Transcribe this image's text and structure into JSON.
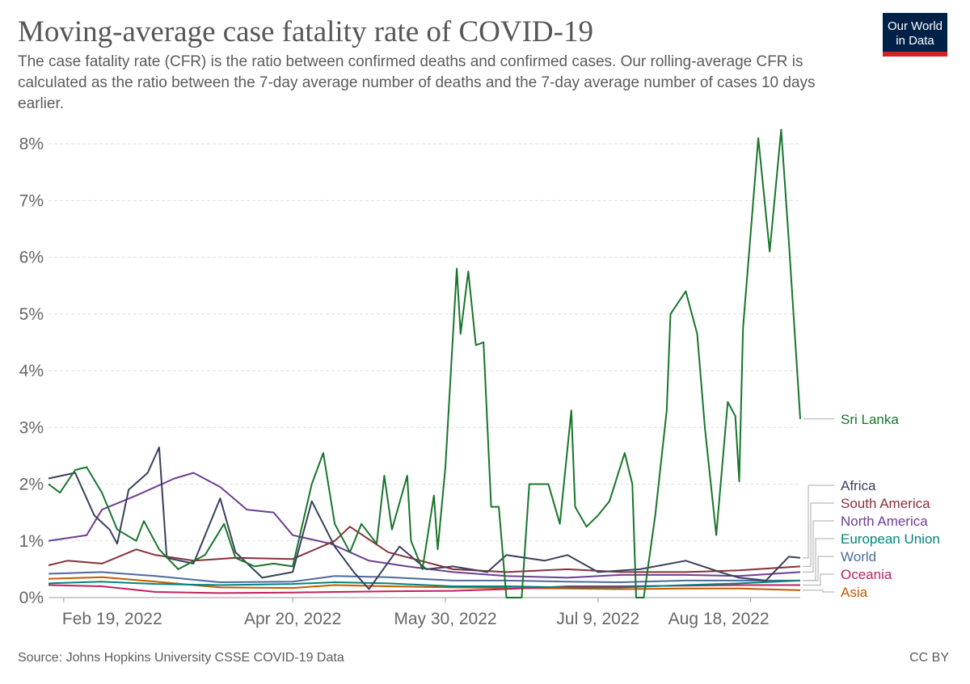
{
  "header": {
    "title": "Moving-average case fatality rate of COVID-19",
    "subtitle": "The case fatality rate (CFR) is the ratio between confirmed deaths and confirmed cases. Our rolling-average CFR is calculated as the ratio between the 7-day average number of deaths and the 7-day average number of cases 10 days earlier.",
    "logo_line1": "Our World",
    "logo_line2": "in Data"
  },
  "footer": {
    "source": "Source: Johns Hopkins University CSSE COVID-19 Data",
    "license": "CC BY"
  },
  "colors": {
    "logo_bg": "#002147",
    "logo_accent": "#ce261e",
    "grid": "#dddddd",
    "axis": "#999999"
  },
  "chart_data": {
    "type": "line",
    "title": "Moving-average case fatality rate of COVID-19",
    "xlabel": "",
    "ylabel": "",
    "x_range": [
      "2022-02-15",
      "2022-08-31"
    ],
    "x_ticks": [
      {
        "date": "2022-02-19",
        "label": "Feb 19, 2022"
      },
      {
        "date": "2022-04-20",
        "label": "Apr 20, 2022"
      },
      {
        "date": "2022-05-30",
        "label": "May 30, 2022"
      },
      {
        "date": "2022-07-09",
        "label": "Jul 9, 2022"
      },
      {
        "date": "2022-08-18",
        "label": "Aug 18, 2022"
      }
    ],
    "ylim": [
      0,
      8.4
    ],
    "y_ticks": [
      0,
      1,
      2,
      3,
      4,
      5,
      6,
      7,
      8
    ],
    "y_tick_labels": [
      "0%",
      "1%",
      "2%",
      "3%",
      "4%",
      "5%",
      "6%",
      "7%",
      "8%"
    ],
    "grid": "horizontal dashed",
    "legend": "direct labels at right end of lines",
    "series": [
      {
        "name": "Asia",
        "color": "#c15b00",
        "points": [
          [
            "2022-02-15",
            0.33
          ],
          [
            "2022-03-01",
            0.36
          ],
          [
            "2022-03-15",
            0.28
          ],
          [
            "2022-04-01",
            0.18
          ],
          [
            "2022-04-20",
            0.17
          ],
          [
            "2022-05-01",
            0.22
          ],
          [
            "2022-05-15",
            0.2
          ],
          [
            "2022-06-01",
            0.18
          ],
          [
            "2022-06-15",
            0.17
          ],
          [
            "2022-07-01",
            0.16
          ],
          [
            "2022-07-15",
            0.15
          ],
          [
            "2022-08-01",
            0.16
          ],
          [
            "2022-08-15",
            0.16
          ],
          [
            "2022-08-31",
            0.13
          ]
        ]
      },
      {
        "name": "Oceania",
        "color": "#c0205f",
        "points": [
          [
            "2022-02-15",
            0.22
          ],
          [
            "2022-03-01",
            0.2
          ],
          [
            "2022-03-15",
            0.1
          ],
          [
            "2022-04-01",
            0.08
          ],
          [
            "2022-04-20",
            0.09
          ],
          [
            "2022-05-01",
            0.1
          ],
          [
            "2022-05-15",
            0.11
          ],
          [
            "2022-06-01",
            0.12
          ],
          [
            "2022-06-15",
            0.15
          ],
          [
            "2022-07-01",
            0.2
          ],
          [
            "2022-07-15",
            0.2
          ],
          [
            "2022-08-01",
            0.21
          ],
          [
            "2022-08-15",
            0.22
          ],
          [
            "2022-08-31",
            0.22
          ]
        ]
      },
      {
        "name": "World",
        "color": "#4c6a9c",
        "points": [
          [
            "2022-02-15",
            0.42
          ],
          [
            "2022-03-01",
            0.45
          ],
          [
            "2022-03-15",
            0.38
          ],
          [
            "2022-04-01",
            0.27
          ],
          [
            "2022-04-20",
            0.28
          ],
          [
            "2022-05-01",
            0.38
          ],
          [
            "2022-05-15",
            0.36
          ],
          [
            "2022-06-01",
            0.3
          ],
          [
            "2022-06-15",
            0.3
          ],
          [
            "2022-07-01",
            0.28
          ],
          [
            "2022-07-15",
            0.27
          ],
          [
            "2022-08-01",
            0.3
          ],
          [
            "2022-08-15",
            0.3
          ],
          [
            "2022-08-31",
            0.3
          ]
        ]
      },
      {
        "name": "European Union",
        "color": "#00847e",
        "points": [
          [
            "2022-02-15",
            0.25
          ],
          [
            "2022-03-01",
            0.28
          ],
          [
            "2022-03-15",
            0.24
          ],
          [
            "2022-04-01",
            0.22
          ],
          [
            "2022-04-20",
            0.24
          ],
          [
            "2022-05-01",
            0.27
          ],
          [
            "2022-05-15",
            0.25
          ],
          [
            "2022-06-01",
            0.2
          ],
          [
            "2022-06-15",
            0.2
          ],
          [
            "2022-07-01",
            0.18
          ],
          [
            "2022-07-15",
            0.18
          ],
          [
            "2022-08-01",
            0.22
          ],
          [
            "2022-08-15",
            0.25
          ],
          [
            "2022-08-31",
            0.3
          ]
        ]
      },
      {
        "name": "North America",
        "color": "#6d3e91",
        "points": [
          [
            "2022-02-15",
            1.0
          ],
          [
            "2022-02-25",
            1.1
          ],
          [
            "2022-03-01",
            1.55
          ],
          [
            "2022-03-10",
            1.8
          ],
          [
            "2022-03-20",
            2.1
          ],
          [
            "2022-03-25",
            2.2
          ],
          [
            "2022-04-01",
            1.95
          ],
          [
            "2022-04-08",
            1.55
          ],
          [
            "2022-04-15",
            1.5
          ],
          [
            "2022-04-20",
            1.1
          ],
          [
            "2022-04-30",
            0.95
          ],
          [
            "2022-05-10",
            0.65
          ],
          [
            "2022-05-20",
            0.55
          ],
          [
            "2022-06-01",
            0.45
          ],
          [
            "2022-06-15",
            0.38
          ],
          [
            "2022-07-01",
            0.35
          ],
          [
            "2022-07-15",
            0.4
          ],
          [
            "2022-08-01",
            0.4
          ],
          [
            "2022-08-15",
            0.38
          ],
          [
            "2022-08-31",
            0.45
          ]
        ]
      },
      {
        "name": "South America",
        "color": "#883039",
        "points": [
          [
            "2022-02-15",
            0.57
          ],
          [
            "2022-02-20",
            0.65
          ],
          [
            "2022-03-01",
            0.6
          ],
          [
            "2022-03-10",
            0.85
          ],
          [
            "2022-03-15",
            0.75
          ],
          [
            "2022-03-25",
            0.65
          ],
          [
            "2022-04-05",
            0.7
          ],
          [
            "2022-04-20",
            0.68
          ],
          [
            "2022-05-01",
            1.0
          ],
          [
            "2022-05-05",
            1.25
          ],
          [
            "2022-05-15",
            0.8
          ],
          [
            "2022-06-01",
            0.5
          ],
          [
            "2022-06-15",
            0.45
          ],
          [
            "2022-07-01",
            0.5
          ],
          [
            "2022-07-15",
            0.45
          ],
          [
            "2022-08-01",
            0.45
          ],
          [
            "2022-08-15",
            0.48
          ],
          [
            "2022-08-31",
            0.55
          ]
        ]
      },
      {
        "name": "Africa",
        "color": "#38405c",
        "points": [
          [
            "2022-02-15",
            2.1
          ],
          [
            "2022-02-22",
            2.2
          ],
          [
            "2022-02-27",
            1.45
          ],
          [
            "2022-03-03",
            1.2
          ],
          [
            "2022-03-05",
            0.95
          ],
          [
            "2022-03-08",
            1.9
          ],
          [
            "2022-03-13",
            2.2
          ],
          [
            "2022-03-16",
            2.65
          ],
          [
            "2022-03-18",
            0.7
          ],
          [
            "2022-03-25",
            0.6
          ],
          [
            "2022-04-01",
            1.75
          ],
          [
            "2022-04-05",
            0.8
          ],
          [
            "2022-04-12",
            0.35
          ],
          [
            "2022-04-20",
            0.45
          ],
          [
            "2022-04-25",
            1.7
          ],
          [
            "2022-05-01",
            0.9
          ],
          [
            "2022-05-06",
            0.45
          ],
          [
            "2022-05-10",
            0.15
          ],
          [
            "2022-05-18",
            0.9
          ],
          [
            "2022-05-25",
            0.5
          ],
          [
            "2022-06-01",
            0.55
          ],
          [
            "2022-06-10",
            0.45
          ],
          [
            "2022-06-15",
            0.75
          ],
          [
            "2022-06-25",
            0.65
          ],
          [
            "2022-07-01",
            0.75
          ],
          [
            "2022-07-09",
            0.45
          ],
          [
            "2022-07-20",
            0.5
          ],
          [
            "2022-08-01",
            0.65
          ],
          [
            "2022-08-10",
            0.45
          ],
          [
            "2022-08-15",
            0.35
          ],
          [
            "2022-08-22",
            0.3
          ],
          [
            "2022-08-28",
            0.72
          ],
          [
            "2022-08-31",
            0.7
          ]
        ]
      },
      {
        "name": "Sri Lanka",
        "color": "#18752c",
        "points": [
          [
            "2022-02-15",
            2.0
          ],
          [
            "2022-02-18",
            1.85
          ],
          [
            "2022-02-22",
            2.25
          ],
          [
            "2022-02-25",
            2.3
          ],
          [
            "2022-03-01",
            1.85
          ],
          [
            "2022-03-05",
            1.2
          ],
          [
            "2022-03-10",
            1.0
          ],
          [
            "2022-03-12",
            1.35
          ],
          [
            "2022-03-16",
            0.85
          ],
          [
            "2022-03-21",
            0.5
          ],
          [
            "2022-03-28",
            0.75
          ],
          [
            "2022-04-02",
            1.3
          ],
          [
            "2022-04-05",
            0.7
          ],
          [
            "2022-04-10",
            0.55
          ],
          [
            "2022-04-15",
            0.6
          ],
          [
            "2022-04-20",
            0.55
          ],
          [
            "2022-04-25",
            2.0
          ],
          [
            "2022-04-28",
            2.55
          ],
          [
            "2022-05-01",
            1.3
          ],
          [
            "2022-05-05",
            0.8
          ],
          [
            "2022-05-08",
            1.3
          ],
          [
            "2022-05-12",
            0.95
          ],
          [
            "2022-05-14",
            2.15
          ],
          [
            "2022-05-16",
            1.2
          ],
          [
            "2022-05-20",
            2.15
          ],
          [
            "2022-05-21",
            1.0
          ],
          [
            "2022-05-24",
            0.5
          ],
          [
            "2022-05-27",
            1.8
          ],
          [
            "2022-05-28",
            0.85
          ],
          [
            "2022-05-30",
            2.3
          ],
          [
            "2022-06-02",
            5.8
          ],
          [
            "2022-06-03",
            4.65
          ],
          [
            "2022-06-05",
            5.75
          ],
          [
            "2022-06-07",
            4.45
          ],
          [
            "2022-06-09",
            4.5
          ],
          [
            "2022-06-11",
            1.6
          ],
          [
            "2022-06-13",
            1.6
          ],
          [
            "2022-06-15",
            0.0
          ],
          [
            "2022-06-19",
            0.0
          ],
          [
            "2022-06-21",
            2.0
          ],
          [
            "2022-06-26",
            2.0
          ],
          [
            "2022-06-29",
            1.3
          ],
          [
            "2022-07-02",
            3.3
          ],
          [
            "2022-07-03",
            1.6
          ],
          [
            "2022-07-06",
            1.25
          ],
          [
            "2022-07-09",
            1.45
          ],
          [
            "2022-07-12",
            1.7
          ],
          [
            "2022-07-16",
            2.55
          ],
          [
            "2022-07-18",
            2.0
          ],
          [
            "2022-07-19",
            0.0
          ],
          [
            "2022-07-21",
            0.0
          ],
          [
            "2022-07-24",
            1.45
          ],
          [
            "2022-07-27",
            3.3
          ],
          [
            "2022-07-28",
            5.0
          ],
          [
            "2022-08-01",
            5.4
          ],
          [
            "2022-08-04",
            4.65
          ],
          [
            "2022-08-06",
            3.0
          ],
          [
            "2022-08-09",
            1.1
          ],
          [
            "2022-08-12",
            3.45
          ],
          [
            "2022-08-14",
            3.2
          ],
          [
            "2022-08-15",
            2.05
          ],
          [
            "2022-08-16",
            4.75
          ],
          [
            "2022-08-20",
            8.1
          ],
          [
            "2022-08-23",
            6.1
          ],
          [
            "2022-08-26",
            8.25
          ],
          [
            "2022-08-28",
            6.3
          ],
          [
            "2022-08-31",
            3.15
          ]
        ]
      }
    ]
  }
}
